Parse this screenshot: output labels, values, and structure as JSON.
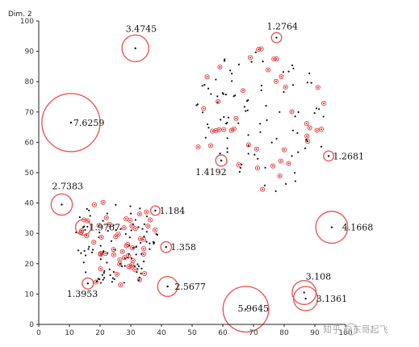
{
  "chart_data": {
    "type": "scatter",
    "title": "",
    "xlabel": "",
    "ylabel": "Dim. 2",
    "xlim": [
      0,
      100
    ],
    "ylim": [
      0,
      100
    ],
    "xticks": [
      "0",
      "10",
      "20",
      "30",
      "40",
      "50",
      "60",
      "70",
      "80",
      "90",
      "100"
    ],
    "yticks": [
      "0",
      "10",
      "20",
      "30",
      "40",
      "50",
      "60",
      "70",
      "80",
      "90",
      "100"
    ],
    "grid": false,
    "legend": "none",
    "colors": {
      "point": "#111111",
      "highlight": "#e03c3c",
      "ring": "#e85a5a"
    },
    "circles": [
      {
        "label": "3.4745",
        "x": 31.5,
        "y": 91.0
      },
      {
        "label": "1.2764",
        "x": 77.5,
        "y": 94.5
      },
      {
        "label": "7.6259",
        "x": 10.5,
        "y": 66.5
      },
      {
        "label": "1.2681",
        "x": 94.5,
        "y": 55.5
      },
      {
        "label": "1.4192",
        "x": 59.5,
        "y": 54.0
      },
      {
        "label": "2.7383",
        "x": 7.5,
        "y": 39.5
      },
      {
        "label": "1.9767",
        "x": 14.5,
        "y": 32.0
      },
      {
        "label": "1.184",
        "x": 38.0,
        "y": 37.5
      },
      {
        "label": "4.1668",
        "x": 95.5,
        "y": 32.0
      },
      {
        "label": "1.358",
        "x": 41.5,
        "y": 25.5
      },
      {
        "label": "1.3953",
        "x": 16.0,
        "y": 13.5
      },
      {
        "label": "2.5677",
        "x": 42.0,
        "y": 12.5
      },
      {
        "label": "5.9645",
        "x": 67.5,
        "y": 5.0
      },
      {
        "label": "3.108",
        "x": 86.5,
        "y": 10.5
      },
      {
        "label": "3.1361",
        "x": 87.0,
        "y": 8.5
      }
    ],
    "clusters": [
      {
        "name": "",
        "cx": 72,
        "cy": 67,
        "rx": 22,
        "ry": 24,
        "n": 130,
        "seed": 7
      },
      {
        "name": "",
        "cx": 25,
        "cy": 27,
        "rx": 14,
        "ry": 15,
        "n": 150,
        "seed": 19
      }
    ]
  },
  "watermark": {
    "text": "知乎 @东哥起飞"
  }
}
